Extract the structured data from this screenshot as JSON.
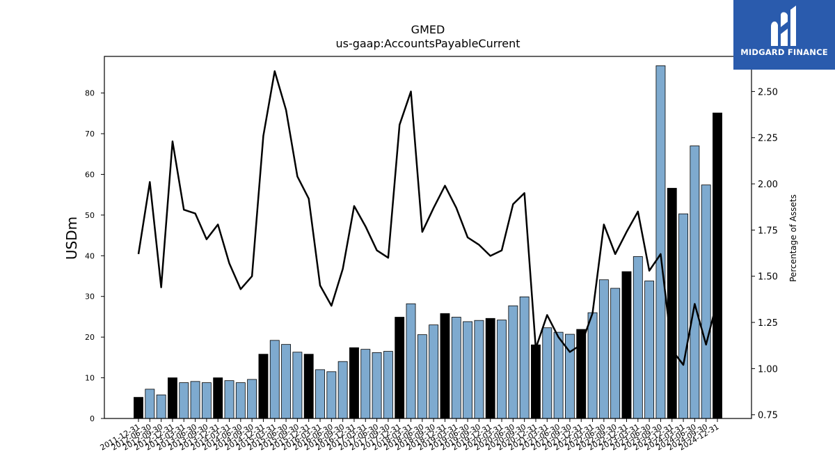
{
  "brand": {
    "logo_name": "MIDGARD FINANCE",
    "logo_color": "#2a5bad"
  },
  "chart_data": {
    "type": "bar",
    "title": "GMED",
    "subtitle": "us-gaap:AccountsPayableCurrent",
    "ylabel": "USDm",
    "y2label": "Percentage of Assets",
    "ylim": [
      0,
      89
    ],
    "y2lim": [
      0.73,
      2.69
    ],
    "yticks": [
      0,
      10,
      20,
      30,
      40,
      50,
      60,
      70,
      80
    ],
    "y2ticks": [
      "0.75",
      "1.00",
      "1.25",
      "1.50",
      "1.75",
      "2.00",
      "2.25",
      "2.50"
    ],
    "colors": {
      "annual": "#000000",
      "quarterly": "#7eaacf",
      "line": "#000000"
    },
    "categories": [
      "2011-12-31",
      "2012-06-30",
      "2012-09-30",
      "2012-12-31",
      "2013-03-31",
      "2013-06-30",
      "2013-09-30",
      "2013-12-31",
      "2014-03-31",
      "2014-06-30",
      "2014-09-30",
      "2014-12-31",
      "2015-03-31",
      "2015-06-30",
      "2015-09-30",
      "2015-12-31",
      "2016-03-31",
      "2016-06-30",
      "2016-09-30",
      "2016-12-31",
      "2017-03-31",
      "2017-06-30",
      "2017-09-30",
      "2017-12-31",
      "2018-03-31",
      "2018-06-30",
      "2018-09-30",
      "2018-12-31",
      "2019-03-31",
      "2019-06-30",
      "2019-09-30",
      "2019-12-31",
      "2020-03-31",
      "2020-06-30",
      "2020-09-30",
      "2020-12-31",
      "2021-03-31",
      "2021-06-30",
      "2021-09-30",
      "2021-12-31",
      "2022-03-31",
      "2022-06-30",
      "2022-09-30",
      "2022-12-31",
      "2023-03-31",
      "2023-06-30",
      "2023-09-30",
      "2023-12-31",
      "2024-03-31",
      "2024-06-30",
      "2024-09-30",
      "2024-12-31"
    ],
    "x_tick_labels": [
      "2011-12-31",
      "2012-06-30",
      "2012-09-30",
      "2012-12-31",
      "2013-03-31",
      "2013-06-30",
      "2013-09-30",
      "2013-12-31",
      "2014-03-31",
      "2014-06-30",
      "2014-09-30",
      "2014-12-31",
      "2015-03-31",
      "2015-06-30",
      "2015-09-30",
      "2015-12-31",
      "2016-03-31",
      "2016-06-30",
      "2016-09-30",
      "2016-12-31",
      "2017-03-31",
      "2017-06-30",
      "2017-09-30",
      "2017-12-31",
      "2018-03-31",
      "2018-06-30",
      "2018-09-30",
      "2018-12-31",
      "2019-03-31",
      "2019-06-30",
      "2019-09-30",
      "2019-12-31",
      "2020-03-31",
      "2020-06-30",
      "2020-09-30",
      "2020-12-31",
      "2021-03-31",
      "2021-06-30",
      "2021-09-30",
      "2021-12-31",
      "2022-03-31",
      "2022-06-30",
      "2022-09-30",
      "2022-12-31",
      "2023-03-31",
      "2023-06-30",
      "2023-09-30",
      "2023-12-31",
      "2024-03-31",
      "2024-06-30",
      "2024-09-30",
      "2024-12-31"
    ],
    "annual_flags": [
      1,
      0,
      0,
      1,
      0,
      0,
      0,
      1,
      0,
      0,
      0,
      1,
      0,
      0,
      0,
      1,
      0,
      0,
      0,
      1,
      0,
      0,
      0,
      1,
      0,
      0,
      0,
      1,
      0,
      0,
      0,
      1,
      0,
      0,
      0,
      1,
      0,
      0,
      0,
      1,
      0,
      0,
      0,
      1,
      0,
      0,
      0,
      1,
      0,
      0,
      0,
      1
    ],
    "series": [
      {
        "name": "Accounts payable",
        "axis": "left",
        "values": [
          5.2,
          7.2,
          5.8,
          10.0,
          8.8,
          9.1,
          8.8,
          10.0,
          9.3,
          8.8,
          9.6,
          15.8,
          19.2,
          18.2,
          16.3,
          15.8,
          12.0,
          11.5,
          14.0,
          17.4,
          17.0,
          16.2,
          16.5,
          24.9,
          28.2,
          20.6,
          23.0,
          25.8,
          24.9,
          23.8,
          24.1,
          24.6,
          24.2,
          27.7,
          29.9,
          18.1,
          22.3,
          21.2,
          20.7,
          21.9,
          26.0,
          34.1,
          32.0,
          36.1,
          39.8,
          33.8,
          86.7,
          56.6,
          50.3,
          67.0,
          57.4,
          75.1
        ]
      },
      {
        "name": "Percentage of Assets",
        "axis": "right",
        "type": "line",
        "values": [
          1.62,
          2.01,
          1.44,
          2.23,
          1.86,
          1.84,
          1.7,
          1.78,
          1.57,
          1.43,
          1.5,
          2.26,
          2.61,
          2.4,
          2.04,
          1.92,
          1.45,
          1.34,
          1.54,
          1.88,
          1.77,
          1.64,
          1.6,
          2.32,
          2.5,
          1.74,
          1.87,
          1.99,
          1.87,
          1.71,
          1.67,
          1.61,
          1.64,
          1.89,
          1.95,
          1.11,
          1.29,
          1.17,
          1.09,
          1.13,
          1.3,
          1.78,
          1.62,
          1.74,
          1.85,
          1.53,
          1.62,
          1.1,
          1.02,
          1.35,
          1.13,
          1.37
        ]
      }
    ]
  }
}
